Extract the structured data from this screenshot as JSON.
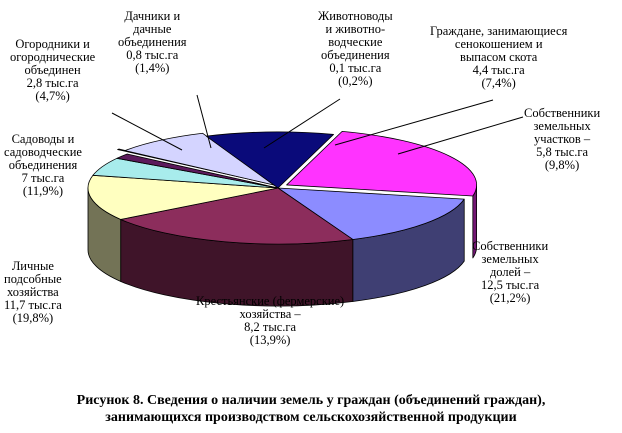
{
  "chart_data": {
    "type": "pie",
    "variant": "3d-exploded",
    "title": "Рисунок 8. Сведения о наличии земель у граждан (объединений граждан), занимающихся производством сельскохозяйственной продукции",
    "unit": "тыс.га",
    "slices": [
      {
        "key": "owners_shares",
        "category": "Собственники земельных долей",
        "value": 12.5,
        "percent": 21.2,
        "color": "#ff33ff",
        "label_lines": [
          "Собственники",
          "земельных",
          "долей –",
          "12,5 тыс.га",
          "(21,2%)"
        ]
      },
      {
        "key": "peasant_farms",
        "category": "Крестьянские (фермерские) хозяйства",
        "value": 8.2,
        "percent": 13.9,
        "color": "#8c8cff",
        "label_lines": [
          "Крестьянские (фермерские)",
          "хозяйства –",
          "8,2 тыс.га",
          "(13,9%)"
        ]
      },
      {
        "key": "personal_plots",
        "category": "Личные подсобные хозяйства",
        "value": 11.7,
        "percent": 19.8,
        "color": "#8c2d5c",
        "label_lines": [
          "Личные",
          "подсобные",
          "хозяйства",
          "11,7 тыс.га",
          "(19,8%)"
        ]
      },
      {
        "key": "gardeners",
        "category": "Садоводы и садоводческие объединения",
        "value": 7.0,
        "percent": 11.9,
        "color": "#ffffc0",
        "label_lines": [
          "Садоводы и",
          "садоводческие",
          "объединения",
          "7 тыс.га",
          "(11,9%)"
        ]
      },
      {
        "key": "vegetable_growers",
        "category": "Огородники и огороднические объединения",
        "value": 2.8,
        "percent": 4.7,
        "color": "#a8ecec",
        "label_lines": [
          "Огородники и",
          "огороднические",
          "объединен",
          "2,8 тыс.га",
          "(4,7%)"
        ]
      },
      {
        "key": "dacha",
        "category": "Дачники и дачные объединения",
        "value": 0.8,
        "percent": 1.4,
        "color": "#5c1a5c",
        "label_lines": [
          "Дачники и",
          "дачные",
          "объединения",
          "0,8 тыс.га",
          "(1,4%)"
        ]
      },
      {
        "key": "livestock",
        "category": "Животноводы и животноводческие объединения",
        "value": 0.1,
        "percent": 0.2,
        "color": "#ff8080",
        "label_lines": [
          "Животноводы",
          "и животно-",
          "водческие",
          "объединения",
          "0,1 тыс.га",
          "(0,2%)"
        ]
      },
      {
        "key": "haymaking",
        "category": "Граждане, занимающиеся сенокошением и выпасом скота",
        "value": 4.4,
        "percent": 7.4,
        "color": "#d4d4ff",
        "label_lines": [
          "Граждане, занимающиеся",
          "сенокошением и",
          "выпасом скота",
          "4,4 тыс.га",
          "(7,4%)"
        ]
      },
      {
        "key": "owners_plots",
        "category": "Собственники земельных участков",
        "value": 5.8,
        "percent": 9.8,
        "color": "#0a0a7a",
        "label_lines": [
          "Собственники",
          "земельных",
          "участков –",
          "5,8 тыс.га",
          "(9,8%)"
        ]
      }
    ]
  }
}
